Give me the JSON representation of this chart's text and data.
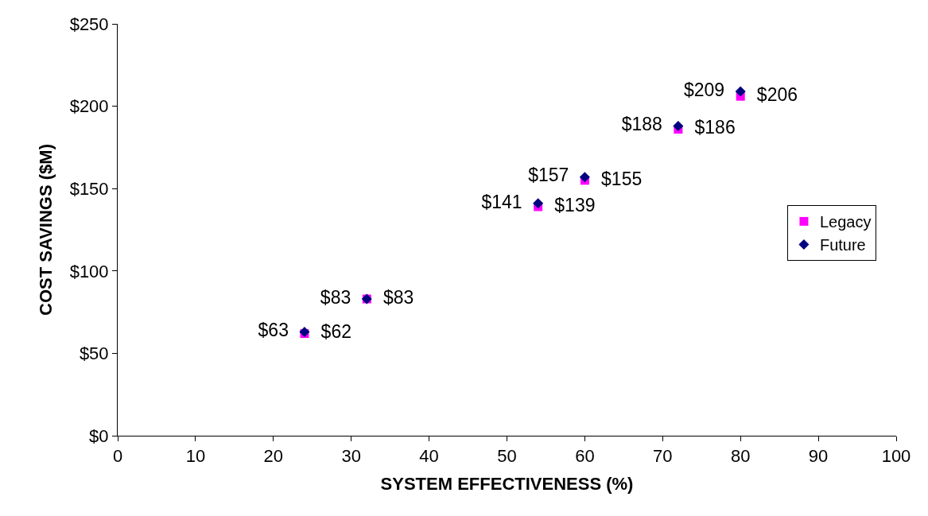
{
  "chart_data": {
    "type": "scatter",
    "xlabel": "SYSTEM EFFECTIVENESS (%)",
    "ylabel": "COST SAVINGS ($M)",
    "x": [
      24,
      32,
      54,
      60,
      72,
      80
    ],
    "series": [
      {
        "name": "Legacy",
        "color": "#ff00ff",
        "marker": "square",
        "values": [
          62,
          83,
          139,
          155,
          186,
          206
        ],
        "value_labels": [
          "$62",
          "$83",
          "$139",
          "$155",
          "$186",
          "$206"
        ]
      },
      {
        "name": "Future",
        "color": "#000080",
        "marker": "diamond",
        "values": [
          63,
          83,
          141,
          157,
          188,
          209
        ],
        "value_labels": [
          "$63",
          "$83",
          "$141",
          "$157",
          "$188",
          "$209"
        ]
      }
    ],
    "xlim": [
      0,
      100
    ],
    "xticks": [
      0,
      10,
      20,
      30,
      40,
      50,
      60,
      70,
      80,
      90,
      100
    ],
    "ylim": [
      0,
      250
    ],
    "yticks": [
      {
        "value": 0,
        "label": "$0"
      },
      {
        "value": 50,
        "label": "$50"
      },
      {
        "value": 100,
        "label": "$100"
      },
      {
        "value": 150,
        "label": "$150"
      },
      {
        "value": 200,
        "label": "$200"
      },
      {
        "value": 250,
        "label": "$250"
      }
    ],
    "legend": "right"
  }
}
